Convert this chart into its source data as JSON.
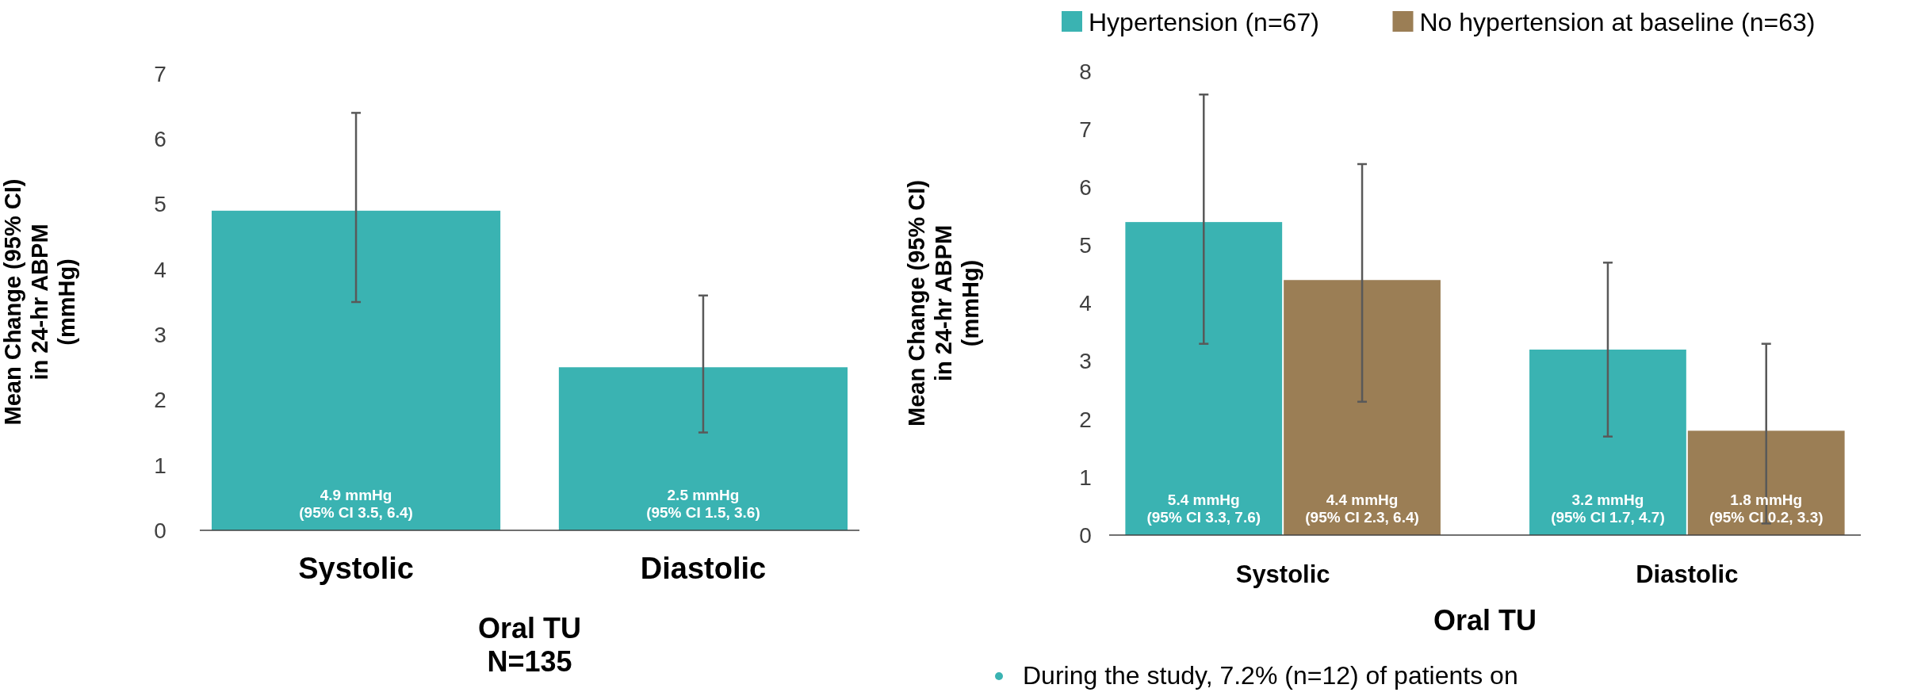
{
  "chart_data": [
    {
      "type": "bar",
      "ylabel": "Mean Change (95% CI)\nin 24-hr ABPM\n(mmHg)",
      "xlabel": "Oral TU\nN=135",
      "categories": [
        "Systolic",
        "Diastolic"
      ],
      "ylim": [
        0,
        7
      ],
      "yticks": [
        0,
        1,
        2,
        3,
        4,
        5,
        6,
        7
      ],
      "grid": false,
      "legend": false,
      "series": [
        {
          "color": "#3ab3b2",
          "values": [
            4.9,
            2.5
          ],
          "errors": [
            [
              3.5,
              6.4
            ],
            [
              1.5,
              3.6
            ]
          ],
          "value_labels": [
            "4.9 mmHg\n(95% CI 3.5, 6.4)",
            "2.5 mmHg\n(95% CI 1.5, 3.6)"
          ]
        }
      ]
    },
    {
      "type": "bar",
      "ylabel": "Mean Change (95% CI)\nin 24-hr ABPM\n(mmHg)",
      "xlabel": "Oral TU",
      "categories": [
        "Systolic",
        "Diastolic"
      ],
      "ylim": [
        0,
        8
      ],
      "yticks": [
        0,
        1,
        2,
        3,
        4,
        5,
        6,
        7,
        8
      ],
      "grid": false,
      "legend": "top",
      "annotations": [
        "During the study, 7.2% (n=12) of patients on"
      ],
      "series": [
        {
          "name": "Hypertension (n=67)",
          "color": "#3ab3b2",
          "values": [
            5.4,
            3.2
          ],
          "errors": [
            [
              3.3,
              7.6
            ],
            [
              1.7,
              4.7
            ]
          ],
          "value_labels": [
            "5.4 mmHg\n(95% CI 3.3, 7.6)",
            "3.2 mmHg\n(95% CI 1.7, 4.7)"
          ]
        },
        {
          "name": "No hypertension at baseline (n=63)",
          "color": "#9b7e55",
          "values": [
            4.4,
            1.8
          ],
          "errors": [
            [
              2.3,
              6.4
            ],
            [
              0.2,
              3.3
            ]
          ],
          "value_labels": [
            "4.4 mmHg\n(95% CI 2.3, 6.4)",
            "1.8 mmHg\n(95% CI 0.2, 3.3)"
          ]
        }
      ]
    }
  ]
}
